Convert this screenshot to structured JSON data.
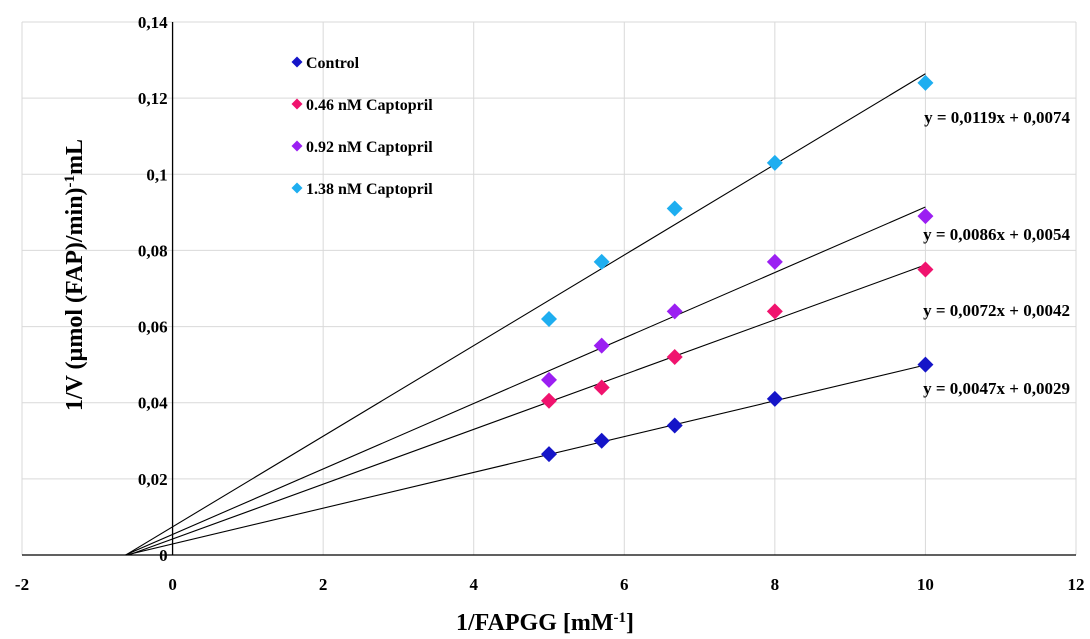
{
  "chart_data": {
    "type": "scatter",
    "xlabel": "1/FAPGG [mM-1]",
    "xlabel_parts": {
      "base": "1/FAPGG [mM",
      "sup": "-1",
      "end": "]"
    },
    "ylabel": "1/V (µmol (FAP)/min)-1mL",
    "ylabel_parts": {
      "base": "1/V (µmol (FAP)/min)",
      "sup": "-1",
      "end": "mL"
    },
    "xlim": [
      -2,
      12
    ],
    "ylim": [
      0,
      0.14
    ],
    "x_ticks": [
      -2,
      0,
      2,
      4,
      6,
      8,
      10,
      12
    ],
    "y_ticks": [
      0,
      0.02,
      0.04,
      0.06,
      0.08,
      0.1,
      0.12,
      0.14
    ],
    "x_tick_labels": [
      "-2",
      "0",
      "2",
      "4",
      "6",
      "8",
      "10",
      "12"
    ],
    "y_tick_labels": [
      "0",
      "0,02",
      "0,04",
      "0,06",
      "0,08",
      "0,1",
      "0,12",
      "0,14"
    ],
    "grid": true,
    "legend_position": "top-left",
    "series": [
      {
        "name": "Control",
        "color": "#1515c8",
        "x": [
          5,
          5.7,
          6.67,
          8,
          10
        ],
        "y": [
          0.0265,
          0.03,
          0.034,
          0.041,
          0.05
        ],
        "trendline": {
          "slope": 0.0047,
          "intercept": 0.0029,
          "x_start": -0.62,
          "x_end": 10,
          "equation": "y = 0,0047x + 0,0029"
        }
      },
      {
        "name": "0.46 nM Captopril",
        "color": "#f0136e",
        "x": [
          5,
          5.7,
          6.67,
          8,
          10
        ],
        "y": [
          0.0405,
          0.044,
          0.052,
          0.064,
          0.075
        ],
        "trendline": {
          "slope": 0.0072,
          "intercept": 0.0042,
          "x_start": -0.58,
          "x_end": 10,
          "equation": "y = 0,0072x + 0,0042"
        }
      },
      {
        "name": "0.92 nM Captopril",
        "color": "#9b1ff2",
        "x": [
          5,
          5.7,
          6.67,
          8,
          10
        ],
        "y": [
          0.046,
          0.055,
          0.064,
          0.077,
          0.089
        ],
        "trendline": {
          "slope": 0.0086,
          "intercept": 0.0054,
          "x_start": -0.63,
          "x_end": 10,
          "equation": "y = 0,0086x + 0,0054"
        }
      },
      {
        "name": "1.38 nM Captopril",
        "color": "#1eaef0",
        "x": [
          5,
          5.7,
          6.67,
          8,
          10
        ],
        "y": [
          0.062,
          0.077,
          0.091,
          0.103,
          0.124
        ],
        "trendline": {
          "slope": 0.0119,
          "intercept": 0.0074,
          "x_start": -0.62,
          "x_end": 10,
          "equation": "y = 0,0119x + 0,0074"
        }
      }
    ]
  }
}
